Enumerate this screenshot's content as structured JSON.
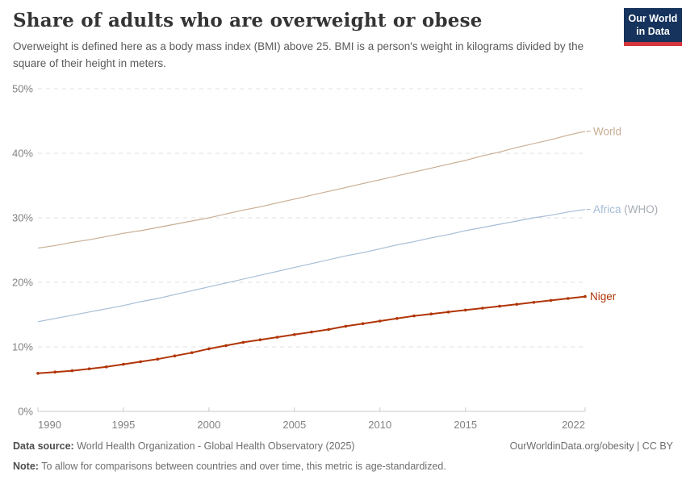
{
  "header": {
    "title": "Share of adults who are overweight or obese",
    "subtitle": "Overweight is defined here as a body mass index (BMI) above 25. BMI is a person's weight in kilograms divided by the square of their height in meters.",
    "logo": {
      "line1": "Our World",
      "line2": "in Data",
      "bg_color": "#15335c",
      "bar_color": "#d5353c"
    }
  },
  "chart_data": {
    "type": "line",
    "title": "Share of adults who are overweight or obese",
    "subtitle": "Overweight is defined here as a body mass index (BMI) above 25. BMI is a person's weight in kilograms divided by the square of their height in meters.",
    "xlabel": "",
    "ylabel": "",
    "ylim": [
      0,
      50
    ],
    "grid": "horizontal-dashed",
    "legend_position": "right-end-labels",
    "y_ticks": [
      0,
      10,
      20,
      30,
      40,
      50
    ],
    "y_tick_labels": [
      "0%",
      "10%",
      "20%",
      "30%",
      "40%",
      "50%"
    ],
    "x_ticks": [
      1990,
      1995,
      2000,
      2005,
      2010,
      2015,
      2022
    ],
    "x_tick_labels": [
      "1990",
      "1995",
      "2000",
      "2005",
      "2010",
      "2015",
      "2022"
    ],
    "x": [
      1990,
      1991,
      1992,
      1993,
      1994,
      1995,
      1996,
      1997,
      1998,
      1999,
      2000,
      2001,
      2002,
      2003,
      2004,
      2005,
      2006,
      2007,
      2008,
      2009,
      2010,
      2011,
      2012,
      2013,
      2014,
      2015,
      2016,
      2017,
      2018,
      2019,
      2020,
      2021,
      2022
    ],
    "series": [
      {
        "name": "World",
        "color": "#c9ad92",
        "focused": false,
        "label_parts": [
          {
            "text": "World",
            "color": "#c9ad92"
          }
        ],
        "values": [
          25.3,
          25.7,
          26.2,
          26.6,
          27.1,
          27.6,
          28.0,
          28.5,
          29.0,
          29.5,
          30.0,
          30.6,
          31.2,
          31.7,
          32.3,
          32.9,
          33.5,
          34.1,
          34.7,
          35.3,
          35.9,
          36.5,
          37.1,
          37.7,
          38.3,
          38.9,
          39.6,
          40.2,
          40.9,
          41.5,
          42.1,
          42.8,
          43.4
        ]
      },
      {
        "name": "Africa (WHO)",
        "color": "#a5bcd6",
        "focused": false,
        "label_parts": [
          {
            "text": "Africa",
            "color": "#a5bcd6"
          },
          {
            "text": " (WHO)",
            "color": "#a8adb4"
          }
        ],
        "values": [
          13.9,
          14.4,
          14.9,
          15.4,
          15.9,
          16.4,
          17.0,
          17.5,
          18.1,
          18.7,
          19.3,
          19.9,
          20.5,
          21.1,
          21.7,
          22.3,
          22.9,
          23.5,
          24.1,
          24.6,
          25.2,
          25.8,
          26.3,
          26.9,
          27.4,
          28.0,
          28.5,
          29.0,
          29.5,
          30.0,
          30.4,
          30.9,
          31.3
        ]
      },
      {
        "name": "Niger",
        "color": "#b13507",
        "focused": true,
        "label_parts": [
          {
            "text": "Niger",
            "color": "#b13507"
          }
        ],
        "values": [
          5.9,
          6.1,
          6.3,
          6.6,
          6.9,
          7.3,
          7.7,
          8.1,
          8.6,
          9.1,
          9.7,
          10.2,
          10.7,
          11.1,
          11.5,
          11.9,
          12.3,
          12.7,
          13.2,
          13.6,
          14.0,
          14.4,
          14.8,
          15.1,
          15.4,
          15.7,
          16.0,
          16.3,
          16.6,
          16.9,
          17.2,
          17.5,
          17.8
        ]
      }
    ],
    "colors": {
      "gridline": "#e0e0e0",
      "axis": "#c9c9c9",
      "tick_label": "#828282"
    }
  },
  "footer": {
    "source_label": "Data source:",
    "source_text": " World Health Organization - Global Health Observatory (2025)",
    "right_text": "OurWorldinData.org/obesity | CC BY",
    "note_label": "Note:",
    "note_text": " To allow for comparisons between countries and over time, this metric is age-standardized."
  }
}
